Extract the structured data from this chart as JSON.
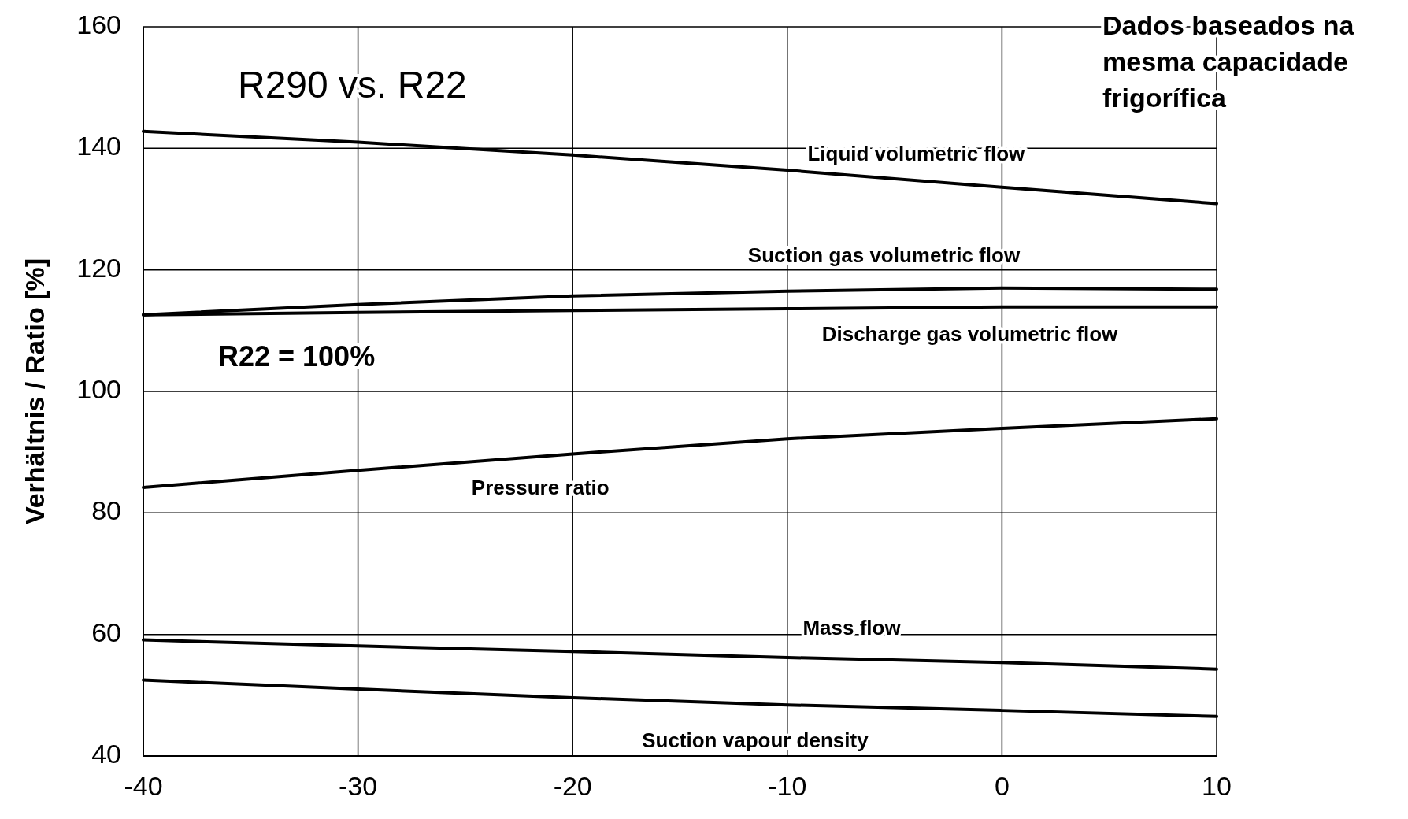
{
  "chart_data": {
    "type": "line",
    "title": "R290 vs. R22",
    "ylabel": "Verhältnis / Ratio  [%]",
    "annotations": [
      "R22 = 100%",
      "Dados baseados na mesma capacidade frigorífica"
    ],
    "x": [
      -40,
      -30,
      -20,
      -10,
      0,
      10
    ],
    "series": [
      {
        "name": "Liquid volumetric flow",
        "color": "#000000",
        "values": [
          142.8,
          141,
          138.9,
          136.4,
          133.6,
          130.9
        ]
      },
      {
        "name": "Suction gas volumetric flow",
        "color": "#000000",
        "values": [
          112.6,
          114.3,
          115.7,
          116.5,
          117.0,
          116.8
        ]
      },
      {
        "name": "Discharge gas volumetric flow",
        "color": "#000000",
        "values": [
          112.6,
          113.0,
          113.3,
          113.6,
          113.9,
          113.9
        ]
      },
      {
        "name": "Pressure ratio",
        "color": "#000000",
        "values": [
          84.2,
          87.0,
          89.7,
          92.2,
          93.9,
          95.5
        ]
      },
      {
        "name": "Mass flow",
        "color": "#000000",
        "values": [
          59.1,
          58.1,
          57.2,
          56.2,
          55.4,
          54.3
        ]
      },
      {
        "name": "Suction vapour density",
        "color": "#000000",
        "values": [
          52.5,
          51.0,
          49.6,
          48.4,
          47.5,
          46.5
        ]
      }
    ],
    "xlim": [
      -40,
      10
    ],
    "xticks": [
      -40,
      -30,
      -20,
      -10,
      0,
      10
    ],
    "ylim": [
      40,
      160
    ],
    "yticks": [
      40,
      60,
      80,
      100,
      120,
      140,
      160
    ],
    "grid": true,
    "marker": "none",
    "line_style": "solid"
  }
}
